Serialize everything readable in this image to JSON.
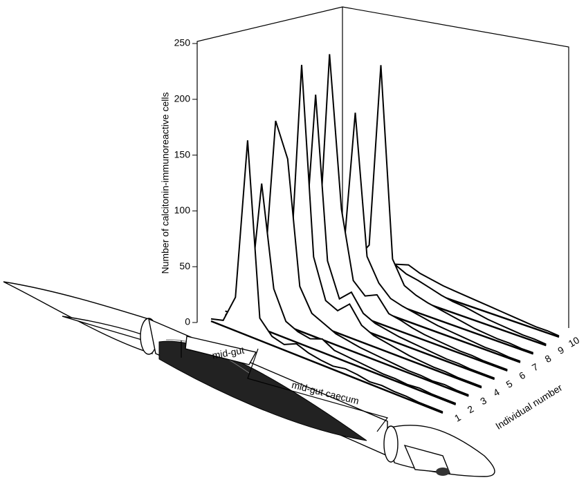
{
  "chart_data": {
    "type": "waterfall",
    "ylabel": "Number of calcitonin-immunoreactive cells",
    "zlabel": "Individual number",
    "ylim": [
      0,
      250
    ],
    "yticks": [
      0,
      50,
      100,
      150,
      200,
      250
    ],
    "color": "#000000",
    "annotations": [
      "mid-gut",
      "mid-gut caecum"
    ],
    "series": [
      {
        "name": "1",
        "values": [
          2,
          5,
          30,
          175,
          20,
          8,
          5,
          10,
          6,
          4,
          3,
          5,
          4,
          2,
          3,
          2,
          2,
          1,
          1,
          1
        ]
      },
      {
        "name": "2",
        "values": [
          3,
          4,
          20,
          130,
          40,
          15,
          10,
          8,
          12,
          6,
          5,
          4,
          3,
          2,
          2,
          1,
          2,
          1,
          1,
          1
        ]
      },
      {
        "name": "3",
        "values": [
          2,
          6,
          30,
          180,
          150,
          40,
          20,
          15,
          10,
          8,
          6,
          5,
          4,
          3,
          2,
          2,
          1,
          2,
          1,
          1
        ]
      },
      {
        "name": "4",
        "values": [
          3,
          5,
          10,
          30,
          228,
          60,
          25,
          20,
          30,
          15,
          10,
          8,
          6,
          4,
          3,
          2,
          2,
          1,
          1,
          1
        ]
      },
      {
        "name": "5",
        "values": [
          2,
          4,
          15,
          40,
          195,
          50,
          20,
          30,
          15,
          10,
          8,
          6,
          5,
          4,
          3,
          2,
          2,
          1,
          1,
          1
        ]
      },
      {
        "name": "6",
        "values": [
          3,
          5,
          12,
          35,
          225,
          90,
          30,
          20,
          25,
          12,
          10,
          7,
          5,
          4,
          3,
          2,
          2,
          1,
          1,
          1
        ]
      },
      {
        "name": "7",
        "values": [
          2,
          4,
          8,
          20,
          40,
          170,
          45,
          25,
          15,
          12,
          10,
          8,
          6,
          5,
          4,
          3,
          2,
          2,
          1,
          1
        ]
      },
      {
        "name": "8",
        "values": [
          2,
          3,
          6,
          15,
          30,
          45,
          210,
          40,
          20,
          15,
          12,
          10,
          8,
          6,
          4,
          3,
          2,
          2,
          1,
          1
        ]
      },
      {
        "name": "9",
        "values": [
          2,
          3,
          5,
          10,
          20,
          30,
          25,
          20,
          18,
          15,
          12,
          10,
          9,
          7,
          5,
          4,
          3,
          2,
          2,
          1
        ]
      },
      {
        "name": "10",
        "values": [
          1,
          2,
          4,
          8,
          12,
          15,
          18,
          14,
          12,
          10,
          9,
          8,
          7,
          6,
          5,
          4,
          3,
          2,
          2,
          1
        ]
      }
    ]
  }
}
